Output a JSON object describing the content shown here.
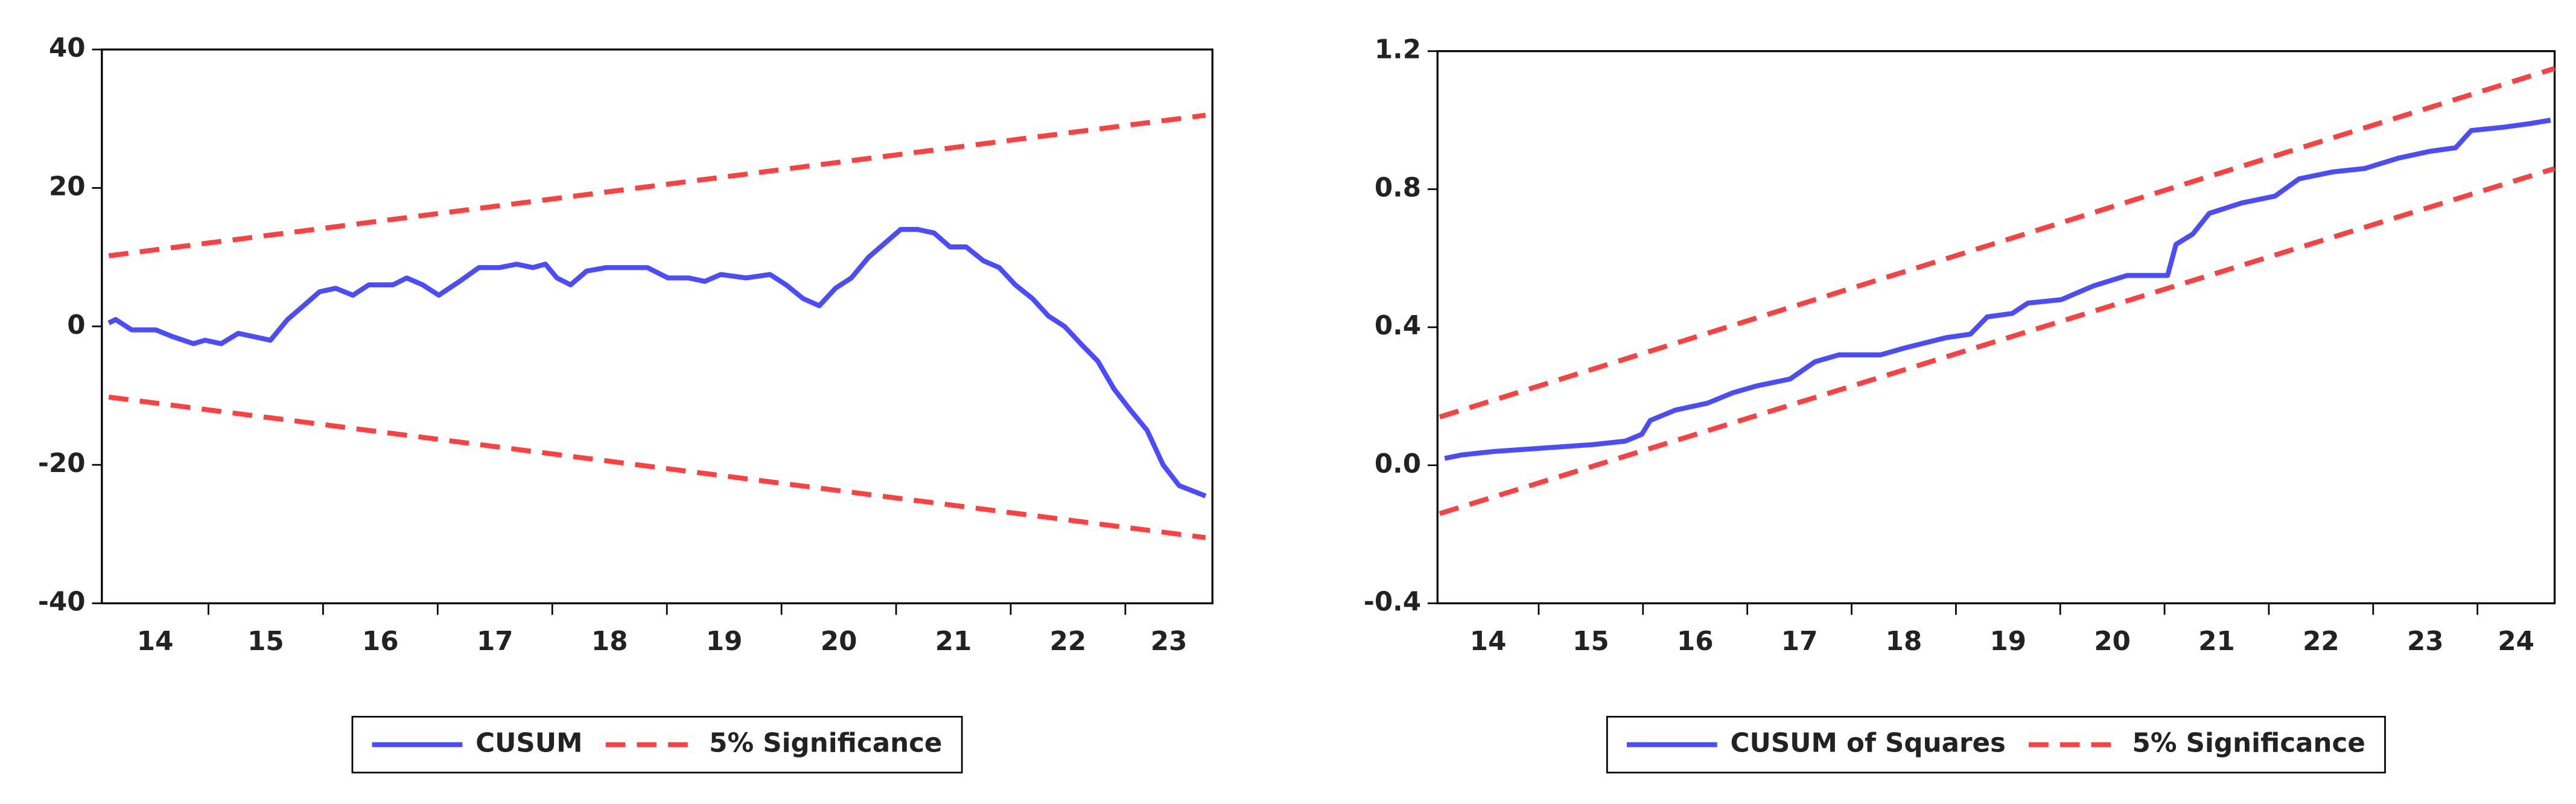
{
  "chart_data": [
    {
      "type": "line",
      "xlim": [
        14.07,
        23.76
      ],
      "xticks": [
        14,
        15,
        16,
        17,
        18,
        19,
        20,
        21,
        22,
        23
      ],
      "ylim": [
        -40,
        40
      ],
      "yticks": [
        -40,
        -20,
        0,
        20,
        40
      ],
      "legend": "bottom",
      "series": [
        {
          "name": "CUSUM",
          "color": "#4b4bff",
          "dash": false,
          "x": [
            14.13,
            14.19,
            14.33,
            14.54,
            14.69,
            14.87,
            14.97,
            15.11,
            15.26,
            15.4,
            15.54,
            15.69,
            15.83,
            15.97,
            16.11,
            16.26,
            16.4,
            16.61,
            16.73,
            16.87,
            17.01,
            17.19,
            17.36,
            17.54,
            17.69,
            17.83,
            17.94,
            18.04,
            18.16,
            18.3,
            18.47,
            18.61,
            18.83,
            19.01,
            19.19,
            19.33,
            19.47,
            19.69,
            19.9,
            20.04,
            20.19,
            20.33,
            20.47,
            20.61,
            20.76,
            20.9,
            21.04,
            21.19,
            21.33,
            21.47,
            21.61,
            21.76,
            21.9,
            22.04,
            22.19,
            22.33,
            22.47,
            22.61,
            22.76,
            22.9,
            23.04,
            23.19,
            23.33,
            23.47,
            23.7
          ],
          "values": [
            0.5,
            1,
            -0.5,
            -0.5,
            -1.5,
            -2.5,
            -2,
            -2.5,
            -1,
            -1.5,
            -2,
            1,
            3,
            5,
            5.5,
            4.5,
            6,
            6,
            7,
            6,
            4.5,
            6.5,
            8.5,
            8.5,
            9,
            8.5,
            9,
            7,
            6,
            8,
            8.5,
            8.5,
            8.5,
            7,
            7,
            6.5,
            7.5,
            7,
            7.5,
            6,
            4,
            3,
            5.5,
            7,
            10,
            12,
            14,
            14,
            13.5,
            11.5,
            11.5,
            9.5,
            8.5,
            6,
            4,
            1.5,
            0,
            -2.5,
            -5,
            -9,
            -12,
            -15,
            -20,
            -23,
            -24.5
          ]
        },
        {
          "name": "5% Significance",
          "color": "#ff4040",
          "dash": true,
          "x": [
            14.13,
            23.7
          ],
          "values": [
            10.2,
            30.5
          ]
        },
        {
          "name": null,
          "color": "#ff4040",
          "dash": true,
          "x": [
            14.13,
            23.7
          ],
          "values": [
            -10.2,
            -30.5
          ]
        }
      ]
    },
    {
      "type": "line",
      "xlim": [
        14.03,
        24.74
      ],
      "xticks": [
        14,
        15,
        16,
        17,
        18,
        19,
        20,
        21,
        22,
        23,
        24
      ],
      "ylim": [
        -0.4,
        1.2
      ],
      "yticks": [
        {
          "value": -0.4,
          "label": "-0.4"
        },
        {
          "value": 0,
          "label": "0.0"
        },
        {
          "value": 0.4,
          "label": "0.4"
        },
        {
          "value": 0.8,
          "label": "0.8"
        },
        {
          "value": 1.2,
          "label": "1.2"
        }
      ],
      "legend": "bottom",
      "series": [
        {
          "name": "CUSUM of Squares",
          "color": "#4b4bff",
          "dash": false,
          "x": [
            14.1,
            14.26,
            14.57,
            15.05,
            15.52,
            15.83,
            15.99,
            16.07,
            16.31,
            16.62,
            16.86,
            17.09,
            17.41,
            17.65,
            17.88,
            18.28,
            18.51,
            18.91,
            19.14,
            19.3,
            19.54,
            19.69,
            20.01,
            20.32,
            20.64,
            21.03,
            21.11,
            21.27,
            21.43,
            21.74,
            22.06,
            22.29,
            22.61,
            22.92,
            23.24,
            23.55,
            23.79,
            23.94,
            24.26,
            24.5,
            24.7
          ],
          "values": [
            0.02,
            0.03,
            0.04,
            0.05,
            0.06,
            0.07,
            0.09,
            0.13,
            0.16,
            0.18,
            0.21,
            0.23,
            0.25,
            0.3,
            0.32,
            0.32,
            0.34,
            0.37,
            0.38,
            0.43,
            0.44,
            0.47,
            0.48,
            0.52,
            0.55,
            0.55,
            0.64,
            0.67,
            0.73,
            0.76,
            0.78,
            0.83,
            0.85,
            0.86,
            0.89,
            0.91,
            0.92,
            0.97,
            0.98,
            0.99,
            1.0
          ]
        },
        {
          "name": "5% Significance",
          "color": "#ff4040",
          "dash": true,
          "x": [
            14.05,
            24.74
          ],
          "values": [
            0.14,
            1.15
          ]
        },
        {
          "name": null,
          "color": "#ff4040",
          "dash": true,
          "x": [
            14.05,
            24.74
          ],
          "values": [
            -0.14,
            0.86
          ]
        }
      ]
    }
  ]
}
